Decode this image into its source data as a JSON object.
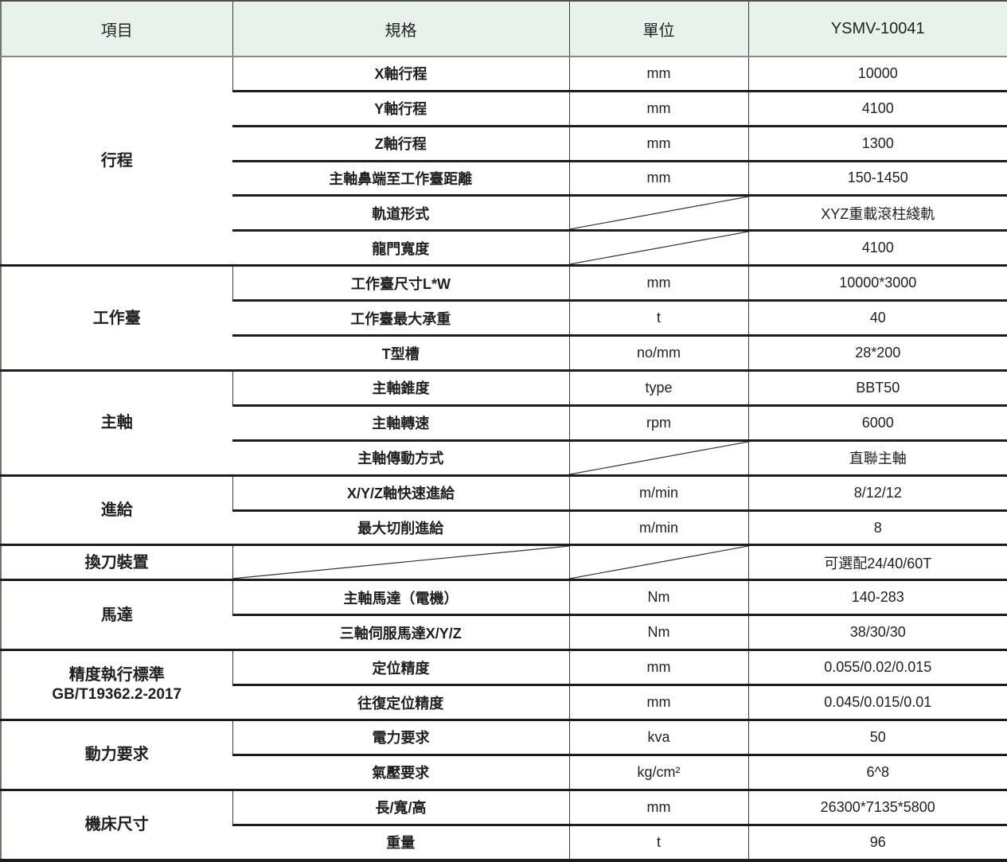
{
  "colors": {
    "header_bg": "#e8f2ea",
    "row_border": "#1c1c1c",
    "column_border": "#3a3a3a",
    "text": "#1f1f1f"
  },
  "header": {
    "item": "項目",
    "spec": "規格",
    "unit": "單位",
    "model": "YSMV-10041"
  },
  "groups": [
    {
      "label": "行程",
      "rows": [
        {
          "spec": "X軸行程",
          "unit": "mm",
          "value": "10000"
        },
        {
          "spec": "Y軸行程",
          "unit": "mm",
          "value": "4100"
        },
        {
          "spec": "Z軸行程",
          "unit": "mm",
          "value": "1300"
        },
        {
          "spec": "主軸鼻端至工作臺距離",
          "unit": "mm",
          "value": "150-1450"
        },
        {
          "spec": "軌道形式",
          "unit": "",
          "unit_slash": true,
          "value": "XYZ重載滾柱綫軌"
        },
        {
          "spec": "龍門寬度",
          "unit": "",
          "unit_slash": true,
          "value": "4100"
        }
      ]
    },
    {
      "label": "工作臺",
      "rows": [
        {
          "spec": "工作臺尺寸L*W",
          "unit": "mm",
          "value": "10000*3000"
        },
        {
          "spec": "工作臺最大承重",
          "unit": "t",
          "value": "40"
        },
        {
          "spec": "T型槽",
          "unit": "no/mm",
          "value": "28*200"
        }
      ]
    },
    {
      "label": "主軸",
      "rows": [
        {
          "spec": "主軸錐度",
          "unit": "type",
          "value": "BBT50"
        },
        {
          "spec": "主軸轉速",
          "unit": "rpm",
          "value": "6000"
        },
        {
          "spec": "主軸傳動方式",
          "unit": "",
          "unit_slash": true,
          "value": "直聯主軸"
        }
      ]
    },
    {
      "label": "進給",
      "rows": [
        {
          "spec": "X/Y/Z軸快速進給",
          "unit": "m/min",
          "value": "8/12/12"
        },
        {
          "spec": "最大切削進給",
          "unit": "m/min",
          "value": "8"
        }
      ]
    },
    {
      "label": "換刀裝置",
      "rows": [
        {
          "spec": "",
          "spec_slash": true,
          "unit": "",
          "unit_slash": true,
          "value": "可選配24/40/60T"
        }
      ]
    },
    {
      "label": "馬達",
      "rows": [
        {
          "spec": "主軸馬達（電機）",
          "unit": "Nm",
          "value": "140-283"
        },
        {
          "spec": "三軸伺服馬達X/Y/Z",
          "unit": "Nm",
          "value": "38/30/30"
        }
      ]
    },
    {
      "label": "精度執行標準",
      "sublabel": "GB/T19362.2-2017",
      "rows": [
        {
          "spec": "定位精度",
          "unit": "mm",
          "value": "0.055/0.02/0.015"
        },
        {
          "spec": "往復定位精度",
          "unit": "mm",
          "value": "0.045/0.015/0.01"
        }
      ]
    },
    {
      "label": "動力要求",
      "rows": [
        {
          "spec": "電力要求",
          "unit": "kva",
          "value": "50"
        },
        {
          "spec": "氣壓要求",
          "unit": "kg/cm²",
          "value": "6^8"
        }
      ]
    },
    {
      "label": "機床尺寸",
      "rows": [
        {
          "spec": "長/寬/高",
          "unit": "mm",
          "value": "26300*7135*5800"
        },
        {
          "spec": "重量",
          "unit": "t",
          "value": "96"
        }
      ]
    }
  ]
}
